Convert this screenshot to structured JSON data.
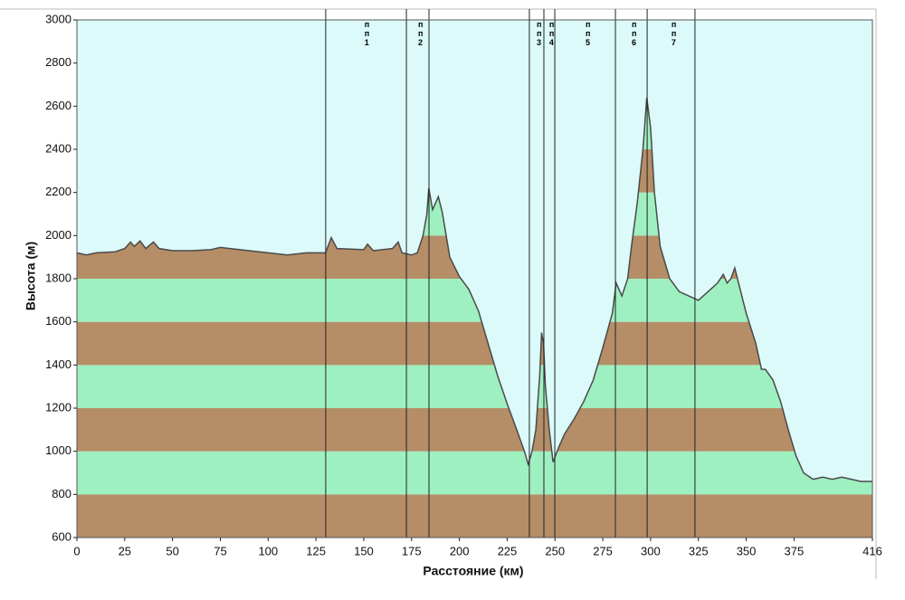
{
  "chart_data": {
    "type": "area",
    "x_label": "Расстояние  (км)",
    "y_label": "Высота (м)",
    "x": [
      0,
      5,
      10,
      20,
      25,
      28,
      30,
      33,
      36,
      40,
      43,
      50,
      60,
      70,
      75,
      80,
      90,
      100,
      110,
      120,
      130,
      133,
      136,
      150,
      152,
      155,
      165,
      168,
      170,
      175,
      178,
      181,
      183,
      184,
      186,
      189,
      191,
      195,
      200,
      205,
      210,
      215,
      220,
      225,
      230,
      234,
      236,
      238,
      240,
      242,
      243,
      244,
      245,
      247,
      249,
      252,
      255,
      260,
      265,
      270,
      275,
      280,
      282,
      285,
      288,
      290,
      293,
      296,
      298,
      300,
      302,
      305,
      310,
      315,
      320,
      325,
      330,
      335,
      338,
      340,
      342,
      344,
      346,
      350,
      355,
      358,
      360,
      364,
      368,
      372,
      376,
      380,
      385,
      390,
      395,
      400,
      405,
      410,
      416
    ],
    "values": [
      1920,
      1910,
      1920,
      1925,
      1940,
      1970,
      1950,
      1975,
      1940,
      1970,
      1940,
      1930,
      1930,
      1935,
      1945,
      1940,
      1930,
      1920,
      1910,
      1920,
      1920,
      1990,
      1940,
      1935,
      1960,
      1930,
      1940,
      1970,
      1920,
      1910,
      1920,
      2000,
      2100,
      2220,
      2120,
      2180,
      2110,
      1900,
      1810,
      1750,
      1650,
      1500,
      1350,
      1220,
      1100,
      1000,
      940,
      1000,
      1100,
      1350,
      1550,
      1500,
      1300,
      1100,
      950,
      1020,
      1080,
      1150,
      1230,
      1330,
      1480,
      1640,
      1780,
      1720,
      1800,
      1950,
      2150,
      2400,
      2640,
      2500,
      2200,
      1950,
      1800,
      1740,
      1720,
      1700,
      1740,
      1780,
      1820,
      1780,
      1800,
      1850,
      1780,
      1640,
      1500,
      1380,
      1380,
      1330,
      1230,
      1100,
      980,
      900,
      870,
      880,
      870,
      880,
      870,
      860,
      860
    ],
    "xlim": [
      0,
      416
    ],
    "xticks": [
      0,
      25,
      50,
      75,
      100,
      125,
      150,
      175,
      200,
      225,
      250,
      275,
      300,
      325,
      350,
      375,
      416
    ],
    "ylim": [
      600,
      3000
    ],
    "yticks": [
      600,
      800,
      1000,
      1200,
      1400,
      1600,
      1800,
      2000,
      2200,
      2400,
      2600,
      2800,
      3000
    ],
    "sky_color": "#dcfafa",
    "band_colors": [
      "#b58d67",
      "#9ff0c0"
    ],
    "line_color": "#4a4a4a",
    "checkpoint_lines": [
      130.1,
      172.3,
      184.1,
      236.6,
      244.2,
      249.9,
      281.6,
      298.2,
      323.2
    ],
    "checkpoints": [
      {
        "x": 150.4,
        "label": "п п 1"
      },
      {
        "x": 178.4,
        "label": "п п 2"
      },
      {
        "x": 240.4,
        "label": "п п 3"
      },
      {
        "x": 247.0,
        "label": "п п 4"
      },
      {
        "x": 266.0,
        "label": "п п 5"
      },
      {
        "x": 290.1,
        "label": "п п 6"
      },
      {
        "x": 310.9,
        "label": "п п 7"
      }
    ]
  }
}
